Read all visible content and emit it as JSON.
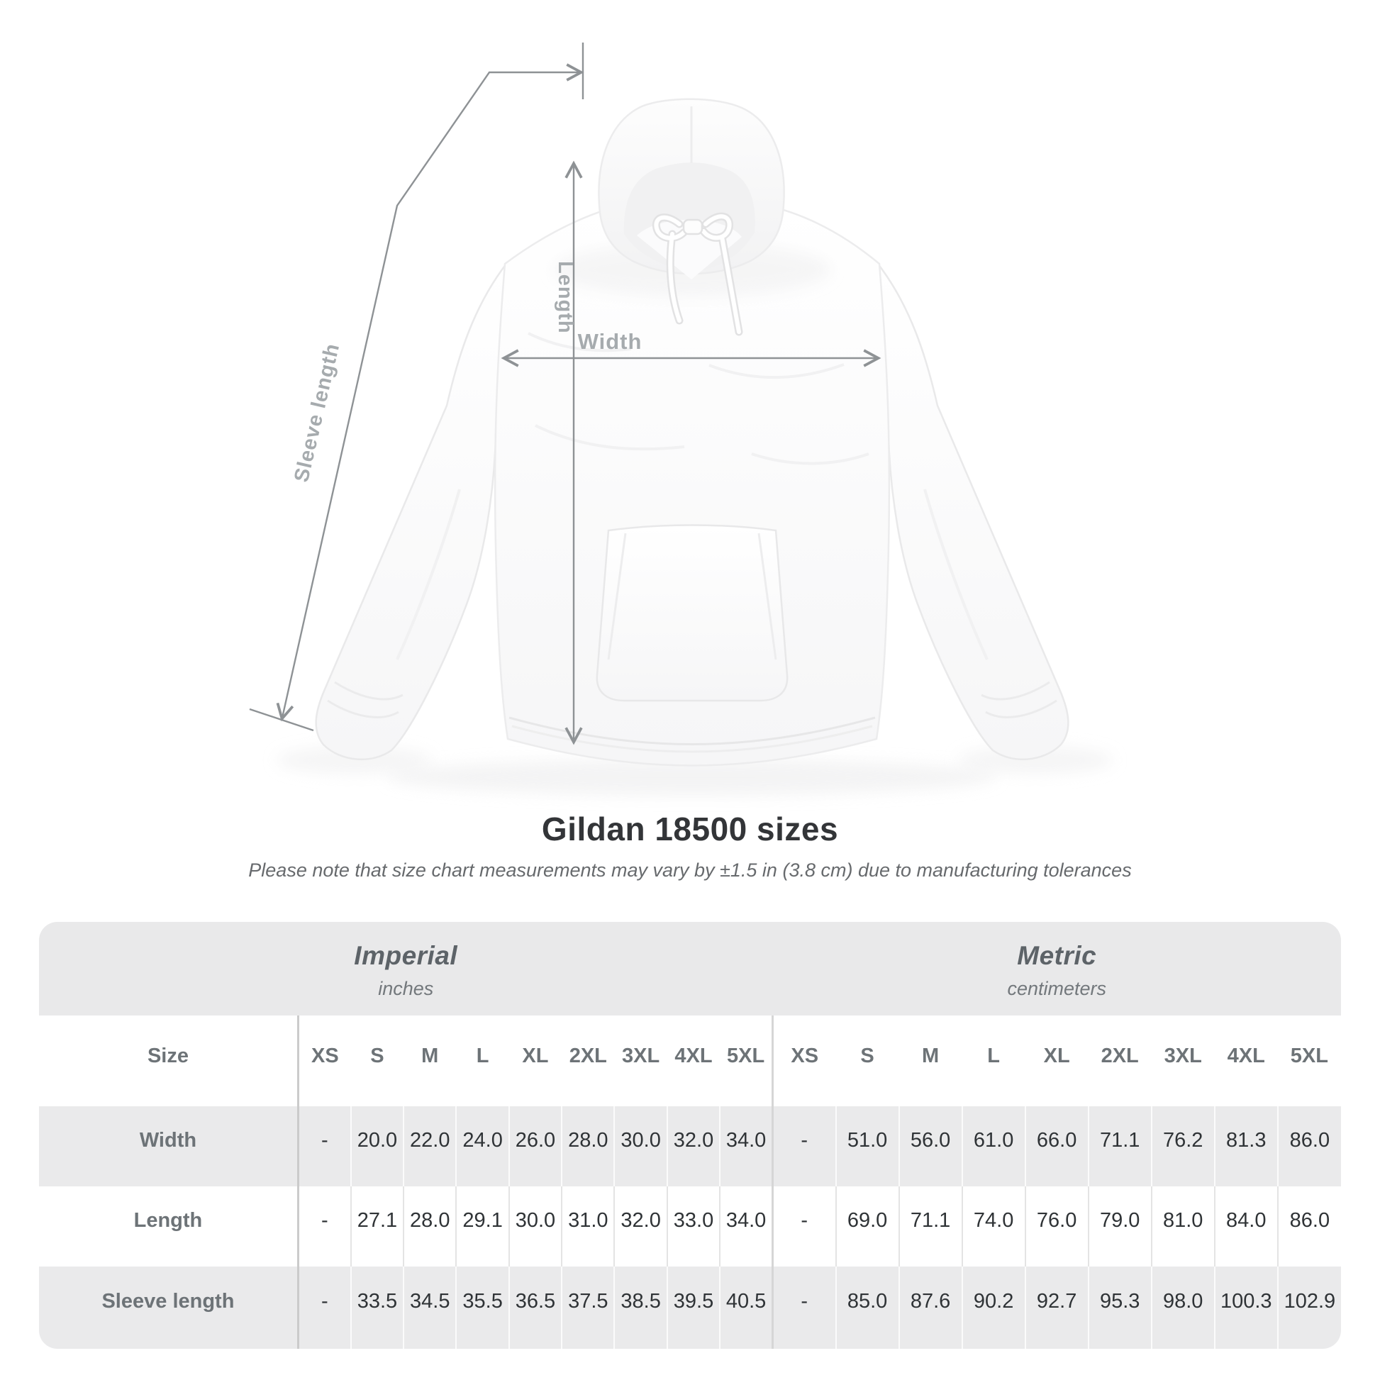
{
  "diagram": {
    "labels": {
      "length": "Length",
      "width": "Width",
      "sleeve": "Sleeve length"
    },
    "line_color": "#8e9295",
    "label_color": "#a6abae",
    "garment": "white pullover hoodie, front view"
  },
  "title": "Gildan 18500 sizes",
  "subtitle": "Please note that size chart measurements may vary by ±1.5 in (3.8 cm) due to manufacturing tolerances",
  "chart_data": {
    "type": "table",
    "title": "Gildan 18500 sizes",
    "groups": [
      {
        "label": "Imperial",
        "sublabel": "inches"
      },
      {
        "label": "Metric",
        "sublabel": "centimeters"
      }
    ],
    "size_header": "Size",
    "sizes": [
      "XS",
      "S",
      "M",
      "L",
      "XL",
      "2XL",
      "3XL",
      "4XL",
      "5XL"
    ],
    "rows": [
      {
        "label": "Width",
        "imperial": [
          "-",
          "20.0",
          "22.0",
          "24.0",
          "26.0",
          "28.0",
          "30.0",
          "32.0",
          "34.0"
        ],
        "metric": [
          "-",
          "51.0",
          "56.0",
          "61.0",
          "66.0",
          "71.1",
          "76.2",
          "81.3",
          "86.0"
        ]
      },
      {
        "label": "Length",
        "imperial": [
          "-",
          "27.1",
          "28.0",
          "29.1",
          "30.0",
          "31.0",
          "32.0",
          "33.0",
          "34.0"
        ],
        "metric": [
          "-",
          "69.0",
          "71.1",
          "74.0",
          "76.0",
          "79.0",
          "81.0",
          "84.0",
          "86.0"
        ]
      },
      {
        "label": "Sleeve length",
        "imperial": [
          "-",
          "33.5",
          "34.5",
          "35.5",
          "36.5",
          "37.5",
          "38.5",
          "39.5",
          "40.5"
        ],
        "metric": [
          "-",
          "85.0",
          "87.6",
          "90.2",
          "92.7",
          "95.3",
          "98.0",
          "100.3",
          "102.9"
        ]
      }
    ],
    "colors": {
      "band_bg": "#e9e9ea",
      "row_alt_bg": "#eaeaeb",
      "value_text": "#2f3336",
      "label_text": "#6d7377"
    }
  }
}
